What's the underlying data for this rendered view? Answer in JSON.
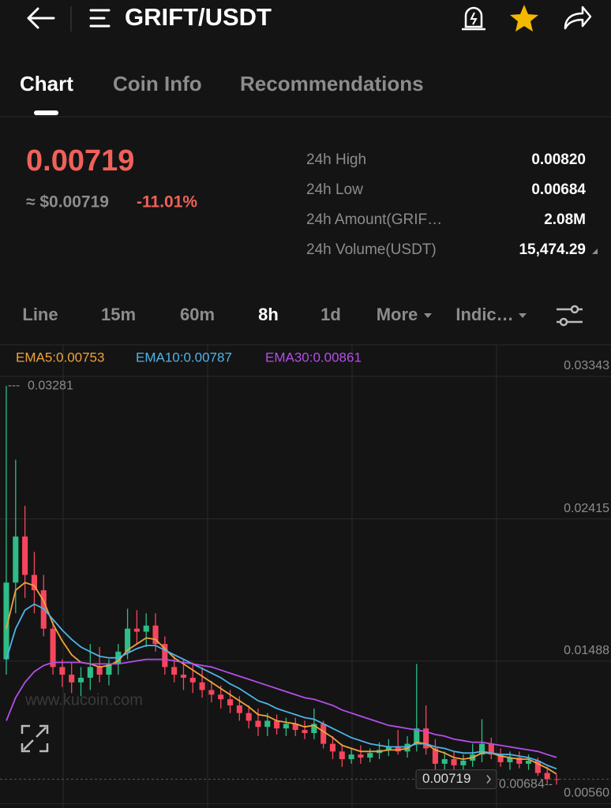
{
  "header": {
    "title": "GRIFT/USDT"
  },
  "tabs": [
    "Chart",
    "Coin Info",
    "Recommendations"
  ],
  "ticker": {
    "price": "0.00719",
    "usd_price": "≈ $0.00719",
    "change": "-11.01%"
  },
  "stats": [
    {
      "label": "24h High",
      "value": "0.00820"
    },
    {
      "label": "24h Low",
      "value": "0.00684"
    },
    {
      "label": "24h Amount(GRIF…",
      "value": "2.08M"
    },
    {
      "label": "24h Volume(USDT)",
      "value": "15,474.29"
    }
  ],
  "intervals": [
    "Line",
    "15m",
    "60m",
    "8h",
    "1d",
    "More",
    "Indic…"
  ],
  "watermark": "www.kucoin.com",
  "chart_data": {
    "type": "candlestick",
    "up_color": "#2ebd85",
    "down_color": "#f6465d",
    "ylim": [
      0.0056,
      0.03343
    ],
    "yticks": [
      {
        "value": 0.0056,
        "label": "0.00560"
      },
      0.01488,
      0.02415,
      0.03343
    ],
    "grid": true,
    "open": [
      0.015,
      0.02,
      0.023,
      0.0205,
      0.0195,
      0.017,
      0.0145,
      0.014,
      0.0135,
      0.0138,
      0.0145,
      0.014,
      0.0147,
      0.0155,
      0.017,
      0.0168,
      0.0172,
      0.016,
      0.0145,
      0.014,
      0.0138,
      0.0135,
      0.013,
      0.0127,
      0.0124,
      0.012,
      0.0115,
      0.011,
      0.0106,
      0.011,
      0.0105,
      0.0108,
      0.0104,
      0.0102,
      0.0108,
      0.0095,
      0.009,
      0.0085,
      0.0088,
      0.0086,
      0.0089,
      0.0091,
      0.0093,
      0.009,
      0.0095,
      0.0105,
      0.0092,
      0.0082,
      0.0085,
      0.0081,
      0.0084,
      0.0088,
      0.0095,
      0.0088,
      0.0083,
      0.0086,
      0.0082,
      0.0084,
      0.0076,
      0.0072
    ],
    "high": [
      0.03281,
      0.028,
      0.025,
      0.022,
      0.0205,
      0.0175,
      0.015,
      0.0148,
      0.0145,
      0.016,
      0.0158,
      0.015,
      0.016,
      0.0183,
      0.0182,
      0.018,
      0.018,
      0.0165,
      0.0152,
      0.015,
      0.0148,
      0.0145,
      0.0136,
      0.0133,
      0.013,
      0.0126,
      0.012,
      0.0118,
      0.0115,
      0.0114,
      0.0112,
      0.0112,
      0.011,
      0.0118,
      0.011,
      0.01,
      0.0095,
      0.0092,
      0.0094,
      0.0092,
      0.0096,
      0.0098,
      0.0104,
      0.01,
      0.0147,
      0.012,
      0.0098,
      0.009,
      0.009,
      0.0088,
      0.0095,
      0.0111,
      0.0099,
      0.0092,
      0.009,
      0.009,
      0.0088,
      0.0086,
      0.008,
      0.0075
    ],
    "low": [
      0.014,
      0.018,
      0.019,
      0.018,
      0.0165,
      0.014,
      0.0132,
      0.0128,
      0.0126,
      0.013,
      0.0135,
      0.0133,
      0.014,
      0.015,
      0.016,
      0.0158,
      0.0155,
      0.014,
      0.0135,
      0.013,
      0.0128,
      0.0125,
      0.0122,
      0.0118,
      0.0115,
      0.011,
      0.0105,
      0.01,
      0.01,
      0.0101,
      0.01,
      0.01,
      0.0098,
      0.0098,
      0.0092,
      0.0085,
      0.008,
      0.0082,
      0.0082,
      0.0083,
      0.0085,
      0.0087,
      0.0088,
      0.0086,
      0.009,
      0.0088,
      0.007,
      0.0072,
      0.0078,
      0.0077,
      0.008,
      0.0083,
      0.0085,
      0.008,
      0.0078,
      0.0079,
      0.0078,
      0.0074,
      0.0069,
      0.00684
    ],
    "close": [
      0.02,
      0.023,
      0.0205,
      0.0195,
      0.017,
      0.0145,
      0.014,
      0.0135,
      0.0138,
      0.0145,
      0.014,
      0.0147,
      0.0155,
      0.017,
      0.0168,
      0.0172,
      0.016,
      0.0145,
      0.014,
      0.0138,
      0.0135,
      0.013,
      0.0127,
      0.0124,
      0.012,
      0.0115,
      0.011,
      0.0106,
      0.011,
      0.0105,
      0.0108,
      0.0104,
      0.0102,
      0.0108,
      0.0095,
      0.009,
      0.0085,
      0.0088,
      0.0086,
      0.0089,
      0.0091,
      0.0093,
      0.009,
      0.0095,
      0.0105,
      0.0092,
      0.0082,
      0.0085,
      0.0081,
      0.0084,
      0.0088,
      0.0095,
      0.0088,
      0.0083,
      0.0086,
      0.0082,
      0.0084,
      0.0076,
      0.0072,
      0.00719
    ],
    "series": [
      {
        "name": "EMA5:0.00753",
        "color": "#f0a23c",
        "values": [
          0.017,
          0.0195,
          0.02,
          0.0198,
          0.0188,
          0.0173,
          0.0162,
          0.0153,
          0.0148,
          0.0147,
          0.0145,
          0.0146,
          0.0149,
          0.0156,
          0.016,
          0.0164,
          0.0163,
          0.0157,
          0.0151,
          0.0147,
          0.0143,
          0.0139,
          0.0135,
          0.0131,
          0.0127,
          0.0123,
          0.0119,
          0.0114,
          0.0113,
          0.011,
          0.0109,
          0.0108,
          0.0106,
          0.0107,
          0.0103,
          0.0099,
          0.0094,
          0.0092,
          0.009,
          0.009,
          0.009,
          0.0091,
          0.0091,
          0.0092,
          0.0096,
          0.0095,
          0.0091,
          0.0089,
          0.0086,
          0.0085,
          0.0086,
          0.0089,
          0.0089,
          0.0087,
          0.0086,
          0.0085,
          0.0085,
          0.0082,
          0.0079,
          0.00753
        ]
      },
      {
        "name": "EMA10:0.00787",
        "color": "#4fb3e8",
        "values": [
          0.015,
          0.017,
          0.0182,
          0.0186,
          0.0183,
          0.0176,
          0.0169,
          0.0163,
          0.0158,
          0.0155,
          0.0152,
          0.0151,
          0.0151,
          0.0154,
          0.0157,
          0.0159,
          0.0159,
          0.0156,
          0.0153,
          0.015,
          0.0147,
          0.0144,
          0.0141,
          0.0138,
          0.0134,
          0.0131,
          0.0127,
          0.0123,
          0.0121,
          0.0118,
          0.0116,
          0.0114,
          0.0112,
          0.0111,
          0.0108,
          0.0105,
          0.0102,
          0.0099,
          0.0097,
          0.0095,
          0.0094,
          0.0093,
          0.0093,
          0.0093,
          0.0095,
          0.0095,
          0.0093,
          0.0092,
          0.009,
          0.0089,
          0.0089,
          0.009,
          0.0089,
          0.0088,
          0.0088,
          0.0087,
          0.0086,
          0.0084,
          0.0081,
          0.00787
        ]
      },
      {
        "name": "EMA30:0.00861",
        "color": "#b44ee8",
        "values": [
          0.011,
          0.0125,
          0.0135,
          0.0142,
          0.0146,
          0.0148,
          0.0148,
          0.0148,
          0.0148,
          0.0147,
          0.0147,
          0.0147,
          0.0147,
          0.0148,
          0.0149,
          0.015,
          0.015,
          0.015,
          0.0149,
          0.0148,
          0.0147,
          0.0146,
          0.0145,
          0.0143,
          0.0141,
          0.0139,
          0.0137,
          0.0135,
          0.0133,
          0.0131,
          0.0129,
          0.0127,
          0.0125,
          0.0124,
          0.0122,
          0.012,
          0.0117,
          0.0115,
          0.0113,
          0.0111,
          0.0109,
          0.0107,
          0.0106,
          0.0105,
          0.0104,
          0.0103,
          0.0101,
          0.01,
          0.0098,
          0.0097,
          0.0096,
          0.0096,
          0.0095,
          0.0094,
          0.0093,
          0.0092,
          0.0091,
          0.009,
          0.0088,
          0.00861
        ]
      }
    ],
    "high_marker": 0.03281,
    "low_marker": 0.00684,
    "last_price": 0.00719
  }
}
